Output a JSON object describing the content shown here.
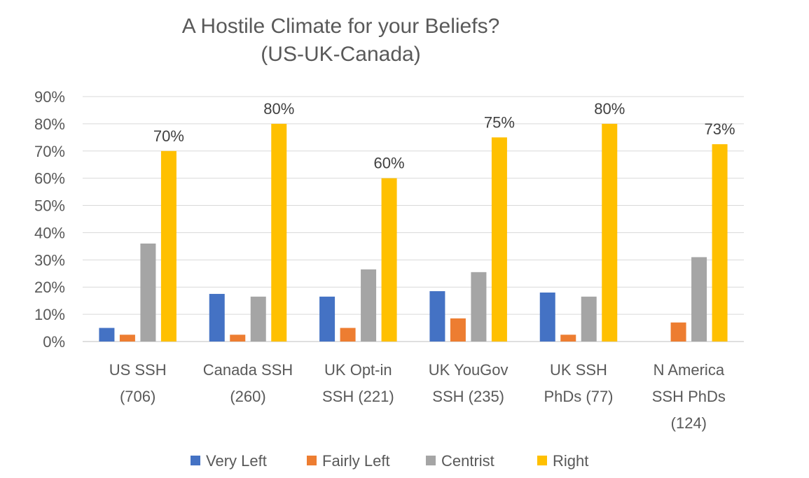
{
  "chart_data": {
    "type": "bar",
    "title": "A Hostile Climate for your Beliefs?",
    "subtitle": "(US-UK-Canada)",
    "categories": [
      [
        "US SSH",
        "(706)"
      ],
      [
        "Canada SSH",
        "(260)"
      ],
      [
        "UK Opt-in",
        "SSH (221)"
      ],
      [
        "UK YouGov",
        "SSH (235)"
      ],
      [
        "UK SSH",
        "PhDs (77)"
      ],
      [
        "N America",
        "SSH PhDs",
        "(124)"
      ]
    ],
    "series": [
      {
        "name": "Very Left",
        "color": "#4472C4",
        "values": [
          5,
          17.5,
          16.5,
          18.5,
          18,
          null
        ]
      },
      {
        "name": "Fairly Left",
        "color": "#ED7D31",
        "values": [
          2.5,
          2.5,
          5,
          8.5,
          2.5,
          7
        ]
      },
      {
        "name": "Centrist",
        "color": "#A5A5A5",
        "values": [
          36,
          16.5,
          26.5,
          25.5,
          16.5,
          31
        ]
      },
      {
        "name": "Right",
        "color": "#FFC000",
        "values": [
          70,
          80,
          60,
          75,
          80,
          72.5
        ]
      }
    ],
    "data_labels": {
      "series": "Right",
      "labels": [
        "70%",
        "80%",
        "60%",
        "75%",
        "80%",
        "73%"
      ]
    },
    "yticks": [
      "0%",
      "10%",
      "20%",
      "30%",
      "40%",
      "50%",
      "60%",
      "70%",
      "80%",
      "90%"
    ],
    "ylim": [
      0,
      90
    ],
    "grid": true,
    "legend": "bottom",
    "xlabel": "",
    "ylabel": ""
  }
}
